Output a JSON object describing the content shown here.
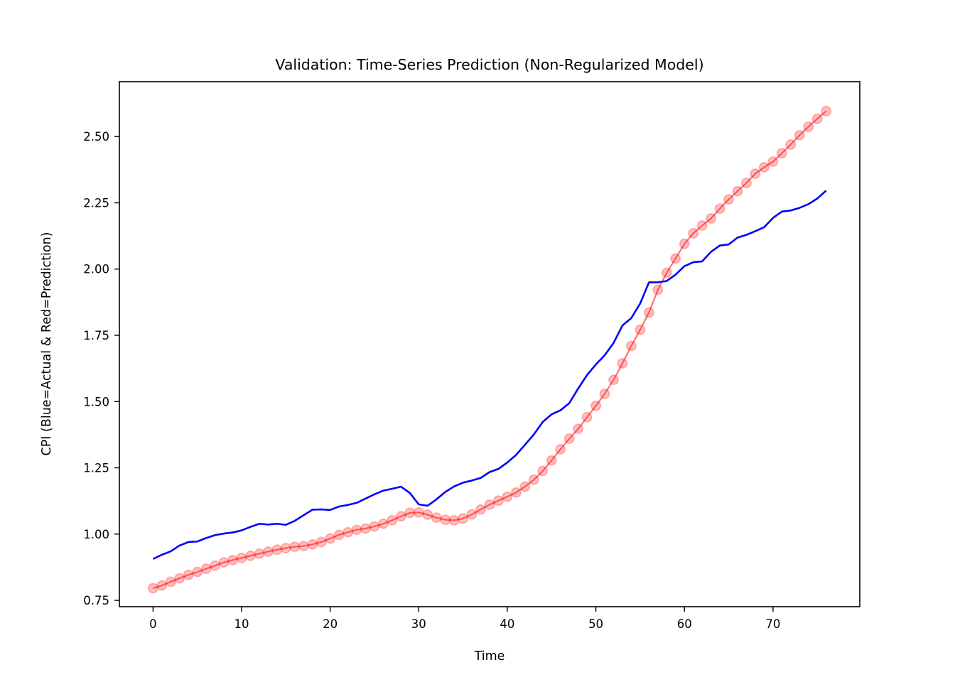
{
  "chart_data": {
    "type": "line",
    "title": "Validation: Time-Series Prediction (Non-Regularized Model)",
    "xlabel": "Time",
    "ylabel": "CPI (Blue=Actual & Red=Prediction)",
    "xlim": [
      -3.8,
      79.8
    ],
    "ylim": [
      0.726,
      2.707
    ],
    "xticks": [
      0,
      10,
      20,
      30,
      40,
      50,
      60,
      70
    ],
    "xtick_labels": [
      "0",
      "10",
      "20",
      "30",
      "40",
      "50",
      "60",
      "70"
    ],
    "yticks": [
      0.75,
      1.0,
      1.25,
      1.5,
      1.75,
      2.0,
      2.25,
      2.5
    ],
    "ytick_labels": [
      "0.75",
      "1.00",
      "1.25",
      "1.50",
      "1.75",
      "2.00",
      "2.25",
      "2.50"
    ],
    "grid": false,
    "legend": "none",
    "x": [
      0,
      1,
      2,
      3,
      4,
      5,
      6,
      7,
      8,
      9,
      10,
      11,
      12,
      13,
      14,
      15,
      16,
      17,
      18,
      19,
      20,
      21,
      22,
      23,
      24,
      25,
      26,
      27,
      28,
      29,
      30,
      31,
      32,
      33,
      34,
      35,
      36,
      37,
      38,
      39,
      40,
      41,
      42,
      43,
      44,
      45,
      46,
      47,
      48,
      49,
      50,
      51,
      52,
      53,
      54,
      55,
      56,
      57,
      58,
      59,
      60,
      61,
      62,
      63,
      64,
      65,
      66,
      67,
      68,
      69,
      70,
      71,
      72,
      73,
      74,
      75,
      76
    ],
    "series": [
      {
        "color": "#0000ff",
        "marker": "none",
        "values": [
          0.906,
          0.922,
          0.935,
          0.957,
          0.97,
          0.972,
          0.985,
          0.996,
          1.002,
          1.006,
          1.014,
          1.027,
          1.039,
          1.036,
          1.039,
          1.035,
          1.05,
          1.071,
          1.092,
          1.093,
          1.091,
          1.104,
          1.11,
          1.118,
          1.134,
          1.15,
          1.164,
          1.171,
          1.179,
          1.155,
          1.112,
          1.107,
          1.131,
          1.159,
          1.18,
          1.194,
          1.202,
          1.212,
          1.234,
          1.246,
          1.27,
          1.299,
          1.337,
          1.376,
          1.423,
          1.452,
          1.467,
          1.494,
          1.549,
          1.6,
          1.64,
          1.675,
          1.721,
          1.787,
          1.815,
          1.87,
          1.95,
          1.95,
          1.955,
          1.979,
          2.011,
          2.026,
          2.029,
          2.065,
          2.089,
          2.093,
          2.119,
          2.129,
          2.143,
          2.158,
          2.193,
          2.217,
          2.221,
          2.231,
          2.245,
          2.266,
          2.296
        ]
      },
      {
        "color": "#ff0000",
        "marker": "circle",
        "values": [
          0.796,
          0.806,
          0.82,
          0.833,
          0.846,
          0.857,
          0.869,
          0.881,
          0.893,
          0.902,
          0.91,
          0.918,
          0.926,
          0.934,
          0.941,
          0.947,
          0.952,
          0.955,
          0.961,
          0.97,
          0.983,
          0.997,
          1.007,
          1.016,
          1.021,
          1.029,
          1.039,
          1.052,
          1.067,
          1.08,
          1.082,
          1.073,
          1.062,
          1.054,
          1.052,
          1.059,
          1.074,
          1.093,
          1.111,
          1.126,
          1.141,
          1.157,
          1.179,
          1.205,
          1.238,
          1.278,
          1.32,
          1.36,
          1.397,
          1.441,
          1.484,
          1.529,
          1.582,
          1.644,
          1.71,
          1.771,
          1.836,
          1.922,
          1.986,
          2.04,
          2.095,
          2.135,
          2.164,
          2.191,
          2.228,
          2.263,
          2.294,
          2.325,
          2.36,
          2.384,
          2.405,
          2.437,
          2.47,
          2.505,
          2.537,
          2.567,
          2.596
        ]
      }
    ]
  }
}
